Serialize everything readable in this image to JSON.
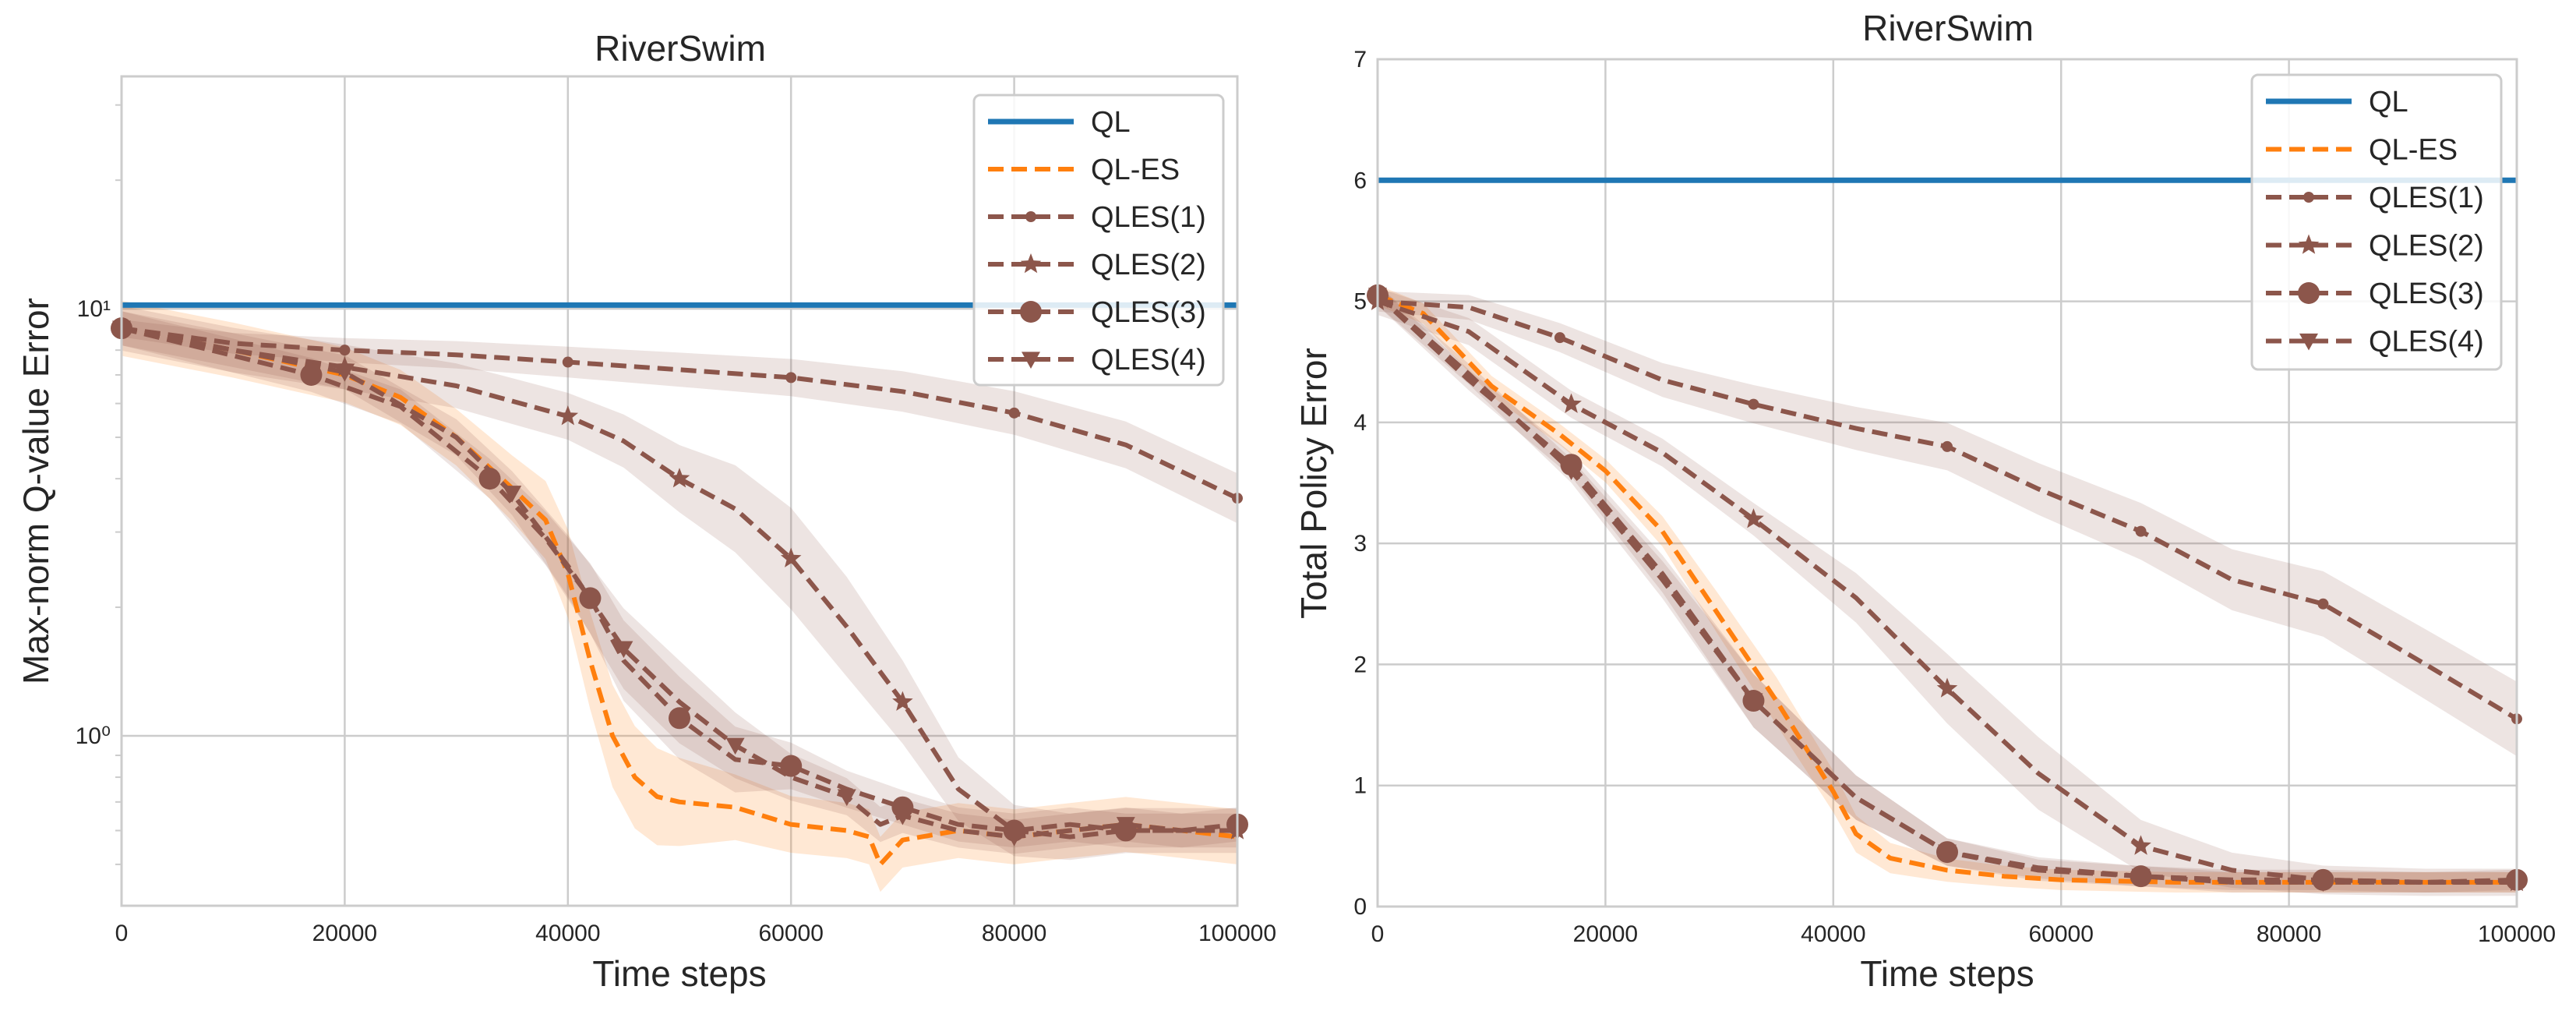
{
  "chart_data": [
    {
      "type": "line",
      "title": "RiverSwim",
      "xlabel": "Time steps",
      "ylabel": "Max-norm Q-value Error",
      "yscale": "log",
      "xlim": [
        0,
        100000
      ],
      "ylim": [
        0.4,
        35
      ],
      "xticks": [
        0,
        20000,
        40000,
        60000,
        80000,
        100000
      ],
      "xtick_labels": [
        "0",
        "20000",
        "40000",
        "60000",
        "80000",
        "100000"
      ],
      "yticks": [
        1,
        10
      ],
      "ytick_labels": [
        "10⁰",
        "10¹"
      ],
      "grid": true,
      "legend_location": "top-right",
      "series": [
        {
          "name": "QL",
          "style": "solid",
          "marker": "none",
          "color": "#1f77b4",
          "x": [
            0,
            100000
          ],
          "y": [
            10.2,
            10.2
          ]
        },
        {
          "name": "QL-ES",
          "style": "dashed",
          "marker": "none",
          "color": "#ff7f0e",
          "x": [
            0,
            10000,
            20000,
            25000,
            30000,
            35000,
            38000,
            40000,
            42000,
            44000,
            46000,
            48000,
            50000,
            55000,
            60000,
            65000,
            67000,
            68000,
            70000,
            75000,
            80000,
            85000,
            90000,
            95000,
            100000
          ],
          "y": [
            9.0,
            8.0,
            7.0,
            6.2,
            5.0,
            3.8,
            3.2,
            2.4,
            1.5,
            1.0,
            0.8,
            0.72,
            0.7,
            0.68,
            0.62,
            0.6,
            0.58,
            0.5,
            0.57,
            0.6,
            0.58,
            0.6,
            0.62,
            0.6,
            0.58
          ]
        },
        {
          "name": "QLES(1)",
          "style": "dashed",
          "marker": "dot",
          "color": "#8c564b",
          "x": [
            0,
            10000,
            20000,
            30000,
            40000,
            50000,
            60000,
            70000,
            80000,
            90000,
            100000
          ],
          "y": [
            9.0,
            8.3,
            8.0,
            7.8,
            7.5,
            7.2,
            6.9,
            6.4,
            5.7,
            4.8,
            3.6
          ]
        },
        {
          "name": "QLES(2)",
          "style": "dashed",
          "marker": "star",
          "color": "#8c564b",
          "x": [
            0,
            10000,
            20000,
            30000,
            40000,
            45000,
            50000,
            55000,
            60000,
            65000,
            70000,
            75000,
            80000,
            85000,
            90000,
            95000,
            100000
          ],
          "y": [
            9.0,
            8.0,
            7.3,
            6.6,
            5.6,
            4.9,
            4.0,
            3.4,
            2.6,
            1.8,
            1.2,
            0.75,
            0.6,
            0.58,
            0.6,
            0.6,
            0.6
          ]
        },
        {
          "name": "QLES(3)",
          "style": "dashed",
          "marker": "circle",
          "color": "#8c564b",
          "x": [
            0,
            8000,
            17000,
            25000,
            33000,
            38000,
            42000,
            45000,
            50000,
            55000,
            60000,
            65000,
            70000,
            75000,
            80000,
            85000,
            90000,
            95000,
            100000
          ],
          "y": [
            9.0,
            8.0,
            7.0,
            5.9,
            4.0,
            2.9,
            2.1,
            1.5,
            1.1,
            0.88,
            0.85,
            0.75,
            0.68,
            0.62,
            0.6,
            0.62,
            0.6,
            0.6,
            0.62
          ]
        },
        {
          "name": "QLES(4)",
          "style": "dashed",
          "marker": "triangle-down",
          "color": "#8c564b",
          "x": [
            0,
            10000,
            20000,
            30000,
            35000,
            40000,
            45000,
            50000,
            55000,
            60000,
            65000,
            68000,
            70000,
            75000,
            80000,
            85000,
            90000,
            95000,
            100000
          ],
          "y": [
            9.0,
            8.0,
            7.1,
            5.0,
            3.7,
            2.5,
            1.6,
            1.2,
            0.95,
            0.8,
            0.72,
            0.62,
            0.65,
            0.6,
            0.58,
            0.6,
            0.62,
            0.6,
            0.6
          ]
        }
      ]
    },
    {
      "type": "line",
      "title": "RiverSwim",
      "xlabel": "Time steps",
      "ylabel": "Total Policy Error",
      "yscale": "linear",
      "xlim": [
        0,
        100000
      ],
      "ylim": [
        0,
        7
      ],
      "xticks": [
        0,
        20000,
        40000,
        60000,
        80000,
        100000
      ],
      "xtick_labels": [
        "0",
        "20000",
        "40000",
        "60000",
        "80000",
        "100000"
      ],
      "yticks": [
        0,
        1,
        2,
        3,
        4,
        5,
        6,
        7
      ],
      "ytick_labels": [
        "0",
        "1",
        "2",
        "3",
        "4",
        "5",
        "6",
        "7"
      ],
      "grid": true,
      "legend_location": "top-right",
      "series": [
        {
          "name": "QL",
          "style": "solid",
          "marker": "none",
          "color": "#1f77b4",
          "x": [
            0,
            100000
          ],
          "y": [
            6.0,
            6.0
          ]
        },
        {
          "name": "QL-ES",
          "style": "dashed",
          "marker": "none",
          "color": "#ff7f0e",
          "x": [
            0,
            4000,
            10000,
            16000,
            20000,
            25000,
            30000,
            35000,
            40000,
            42000,
            45000,
            50000,
            55000,
            60000,
            70000,
            80000,
            90000,
            100000
          ],
          "y": [
            5.05,
            4.9,
            4.3,
            3.9,
            3.6,
            3.1,
            2.4,
            1.7,
            0.95,
            0.6,
            0.4,
            0.3,
            0.25,
            0.22,
            0.2,
            0.2,
            0.2,
            0.2
          ]
        },
        {
          "name": "QLES(1)",
          "style": "dashed",
          "marker": "dot",
          "color": "#8c564b",
          "x": [
            0,
            8000,
            16000,
            25000,
            33000,
            42000,
            50000,
            58000,
            67000,
            75000,
            83000,
            92000,
            100000
          ],
          "y": [
            5.0,
            4.95,
            4.7,
            4.35,
            4.15,
            3.95,
            3.8,
            3.45,
            3.1,
            2.7,
            2.5,
            2.0,
            1.55
          ]
        },
        {
          "name": "QLES(2)",
          "style": "dashed",
          "marker": "star",
          "color": "#8c564b",
          "x": [
            0,
            8000,
            17000,
            25000,
            33000,
            42000,
            50000,
            58000,
            67000,
            75000,
            83000,
            92000,
            100000
          ],
          "y": [
            5.0,
            4.75,
            4.15,
            3.75,
            3.2,
            2.55,
            1.8,
            1.1,
            0.5,
            0.3,
            0.22,
            0.2,
            0.2
          ]
        },
        {
          "name": "QLES(3)",
          "style": "dashed",
          "marker": "circle",
          "color": "#8c564b",
          "x": [
            0,
            8000,
            17000,
            25000,
            33000,
            42000,
            50000,
            58000,
            67000,
            75000,
            83000,
            92000,
            100000
          ],
          "y": [
            5.05,
            4.35,
            3.65,
            2.75,
            1.7,
            0.9,
            0.45,
            0.3,
            0.25,
            0.22,
            0.22,
            0.2,
            0.22
          ]
        },
        {
          "name": "QLES(4)",
          "style": "dashed",
          "marker": "triangle-down",
          "color": "#8c564b",
          "x": [
            0,
            8000,
            17000,
            25000,
            33000,
            42000,
            50000,
            58000,
            67000,
            75000,
            83000,
            92000,
            100000
          ],
          "y": [
            5.05,
            4.4,
            3.6,
            2.7,
            1.7,
            0.9,
            0.45,
            0.32,
            0.25,
            0.2,
            0.2,
            0.2,
            0.2
          ]
        }
      ]
    }
  ]
}
